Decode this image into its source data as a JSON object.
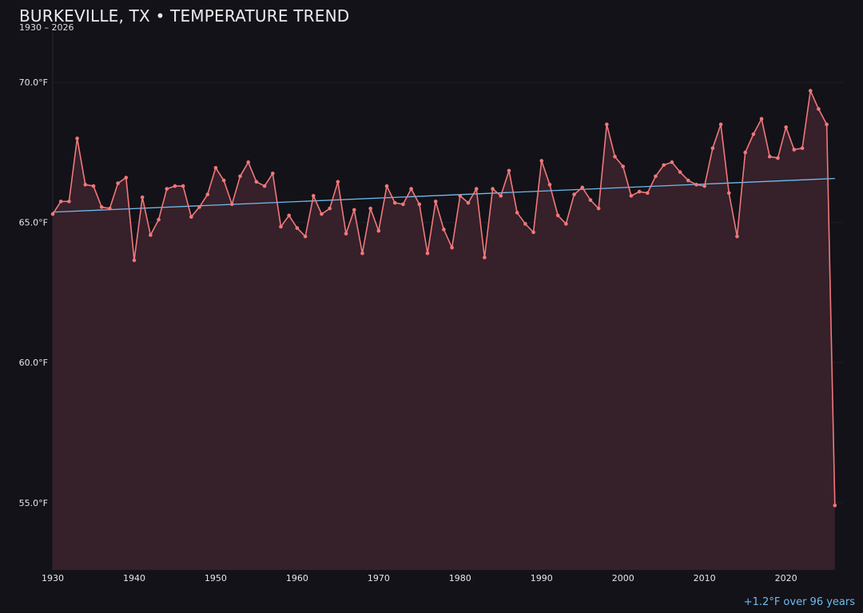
{
  "header": {
    "title": "BURKEVILLE, TX • TEMPERATURE TREND",
    "subtitle": "1930 – 2026"
  },
  "footer": {
    "trend_note": "+1.2°F over 96 years"
  },
  "colors": {
    "background": "#131218",
    "series_line": "#f0787a",
    "series_fill": "#36202a",
    "trend_line": "#6cbcf0",
    "grid": "#221f27",
    "axis_text": "#e6e6ea"
  },
  "chart_data": {
    "type": "line",
    "title": "BURKEVILLE, TX • TEMPERATURE TREND",
    "subtitle": "1930 – 2026",
    "xlabel": "",
    "ylabel": "",
    "xlim": [
      1930,
      2027
    ],
    "ylim": [
      52.6,
      71.8
    ],
    "grid": true,
    "area_fill": true,
    "x_ticks": [
      1930,
      1940,
      1950,
      1960,
      1970,
      1980,
      1990,
      2000,
      2010,
      2020
    ],
    "y_ticks": [
      55,
      60,
      65,
      70
    ],
    "y_tick_labels": [
      "55.0°F",
      "60.0°F",
      "65.0°F",
      "70.0°F"
    ],
    "series": [
      {
        "x": [
          1930,
          1931,
          1932,
          1933,
          1934,
          1935,
          1936,
          1937,
          1938,
          1939,
          1940,
          1941,
          1942,
          1943,
          1944,
          1945,
          1946,
          1947,
          1948,
          1949,
          1950,
          1951,
          1952,
          1953,
          1954,
          1955,
          1956,
          1957,
          1958,
          1959,
          1960,
          1961,
          1962,
          1963,
          1964,
          1965,
          1966,
          1967,
          1968,
          1969,
          1970,
          1971,
          1972,
          1973,
          1974,
          1975,
          1976,
          1977,
          1978,
          1979,
          1980,
          1981,
          1982,
          1983,
          1984,
          1985,
          1986,
          1987,
          1988,
          1989,
          1990,
          1991,
          1992,
          1993,
          1994,
          1995,
          1996,
          1997,
          1998,
          1999,
          2000,
          2001,
          2002,
          2003,
          2004,
          2005,
          2006,
          2007,
          2008,
          2009,
          2010,
          2011,
          2012,
          2013,
          2014,
          2015,
          2016,
          2017,
          2018,
          2019,
          2020,
          2021,
          2022,
          2023,
          2024,
          2025,
          2026
        ],
        "values": [
          65.3,
          65.75,
          65.75,
          68.0,
          66.35,
          66.3,
          65.55,
          65.5,
          66.4,
          66.6,
          63.65,
          65.9,
          64.55,
          65.1,
          66.2,
          66.3,
          66.3,
          65.2,
          65.55,
          66.0,
          66.95,
          66.5,
          65.65,
          66.65,
          67.15,
          66.45,
          66.3,
          66.75,
          64.85,
          65.25,
          64.8,
          64.5,
          65.95,
          65.3,
          65.5,
          66.45,
          64.6,
          65.45,
          63.9,
          65.5,
          64.7,
          66.3,
          65.7,
          65.65,
          66.2,
          65.65,
          63.9,
          65.75,
          64.75,
          64.1,
          65.95,
          65.7,
          66.2,
          63.75,
          66.2,
          65.95,
          66.85,
          65.35,
          64.95,
          64.65,
          67.2,
          66.35,
          65.25,
          64.95,
          66.0,
          66.25,
          65.8,
          65.5,
          68.5,
          67.35,
          67.0,
          65.95,
          66.1,
          66.05,
          66.65,
          67.05,
          67.15,
          66.8,
          66.5,
          66.35,
          66.3,
          67.65,
          68.5,
          66.05,
          64.5,
          67.5,
          68.15,
          68.7,
          67.35,
          67.3,
          68.4,
          67.6,
          67.65,
          69.7,
          69.05,
          68.5,
          54.9
        ]
      }
    ],
    "trend": {
      "start": [
        1930,
        65.37
      ],
      "end": [
        2026,
        66.57
      ],
      "change_label": "+1.2°F over 96 years"
    }
  }
}
